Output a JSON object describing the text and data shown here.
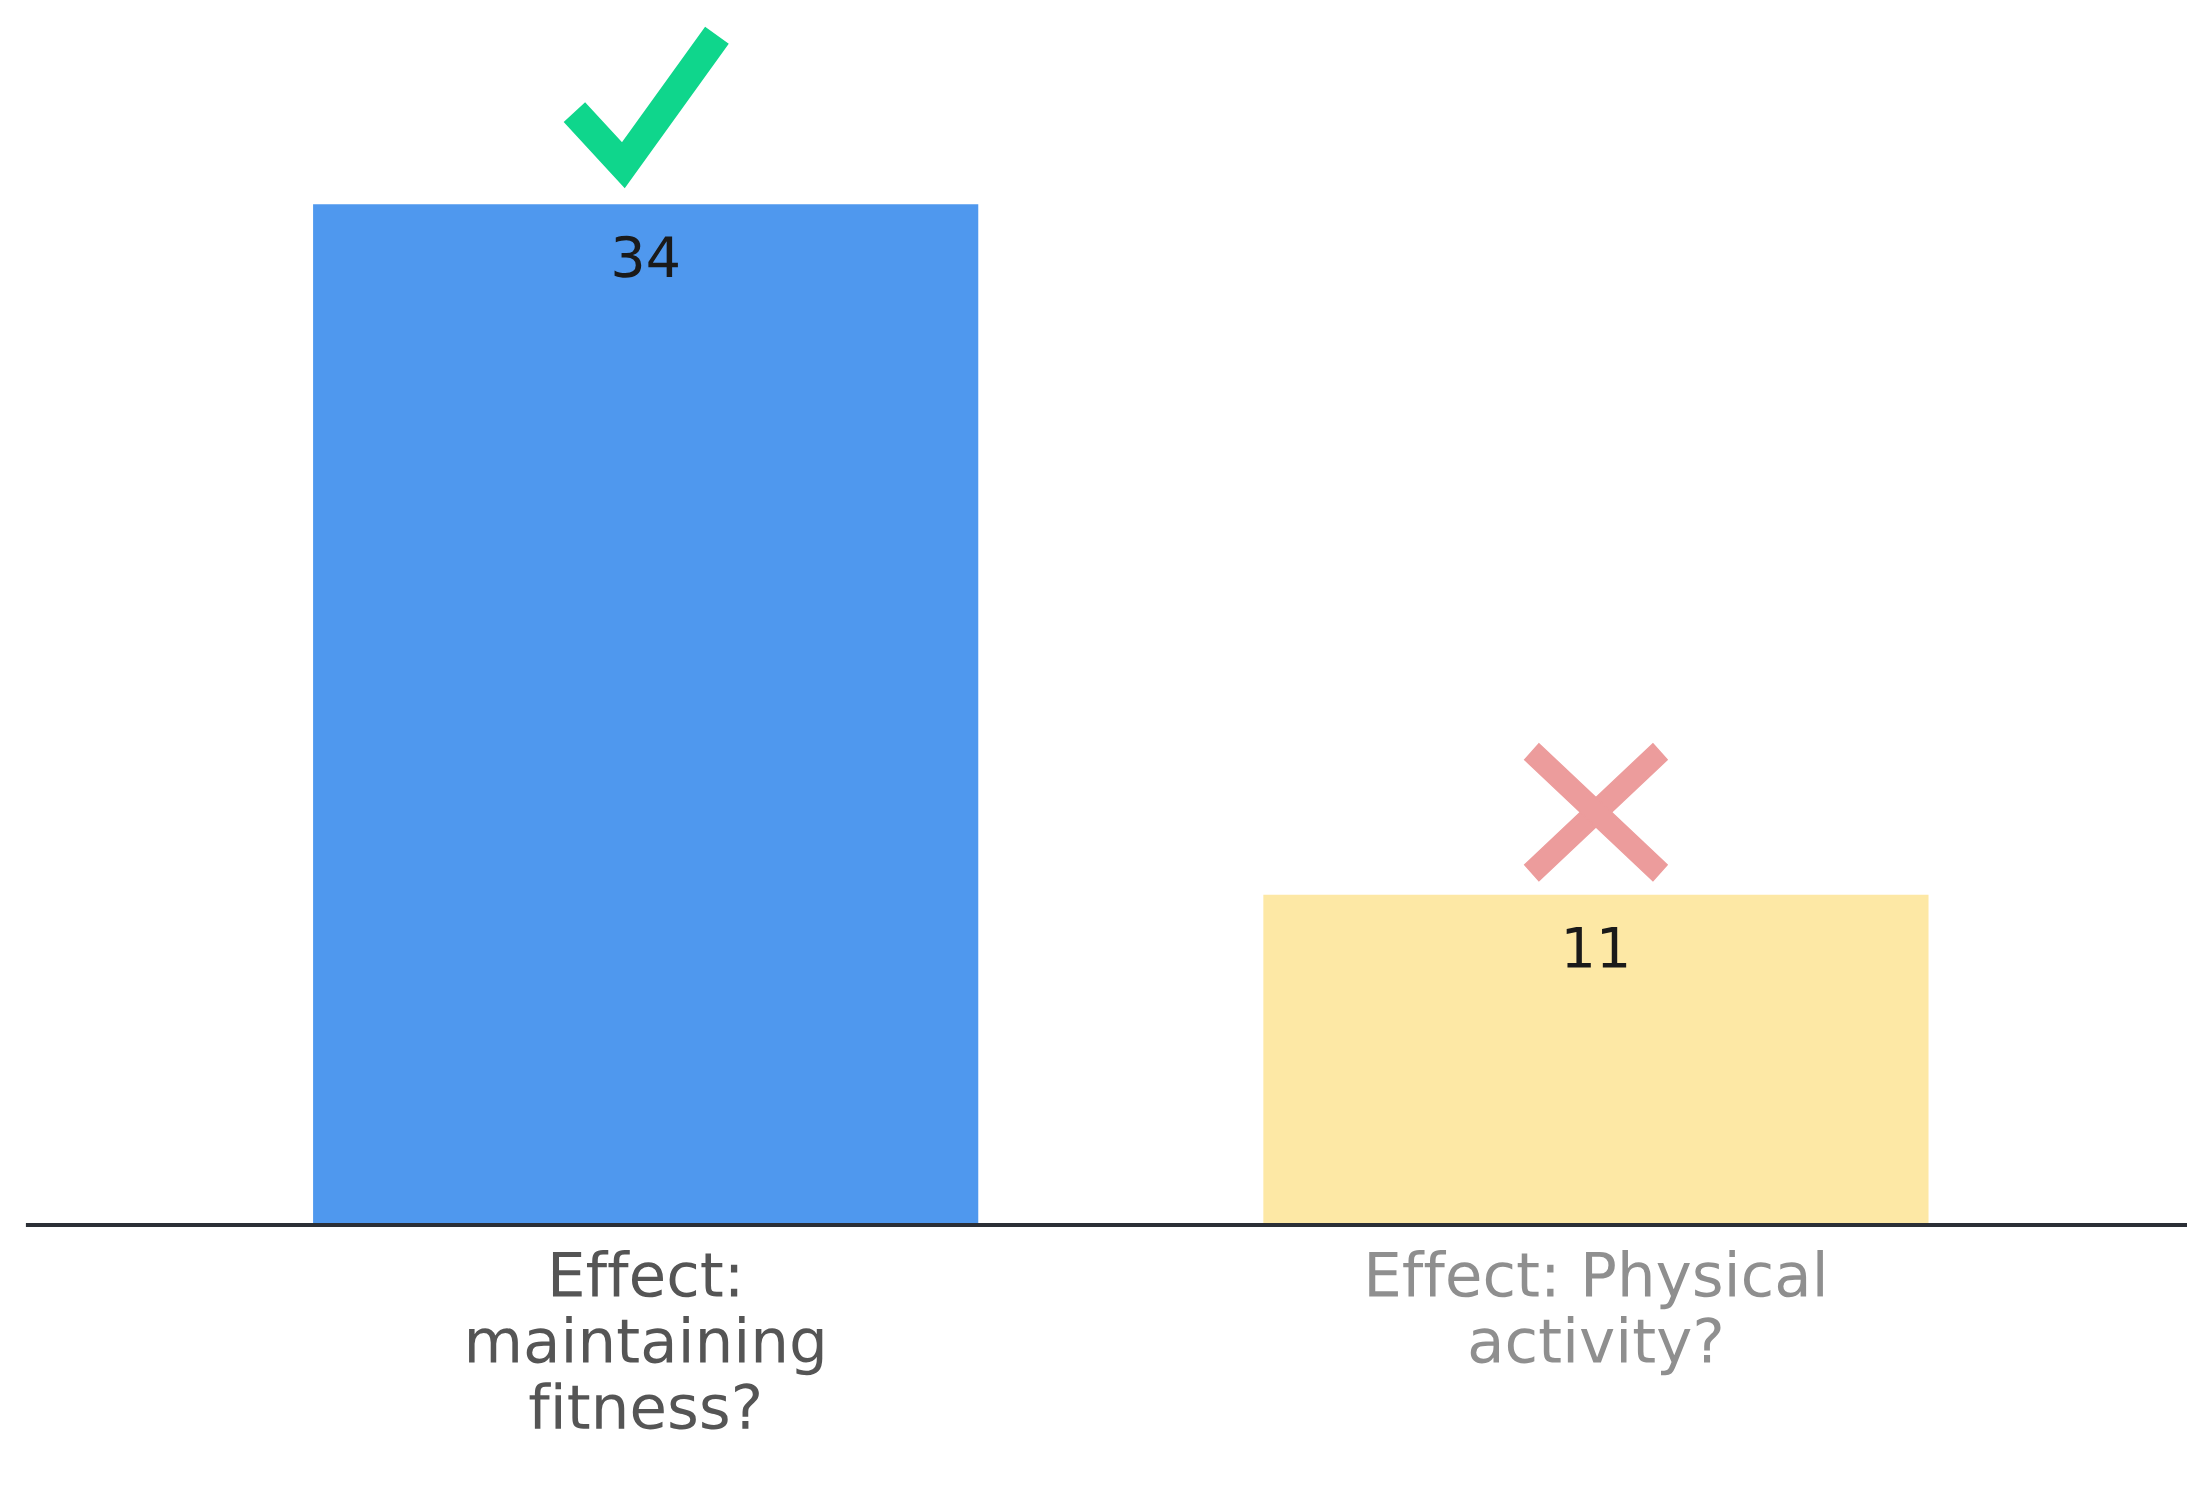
{
  "chart_data": {
    "type": "bar",
    "categories": [
      "Effect: maintaining fitness?",
      "Effect: Physical activity?"
    ],
    "values": [
      34,
      11
    ],
    "colors": [
      "#4f98ee",
      "#fde8a5"
    ],
    "data_labels": true
  }
}
